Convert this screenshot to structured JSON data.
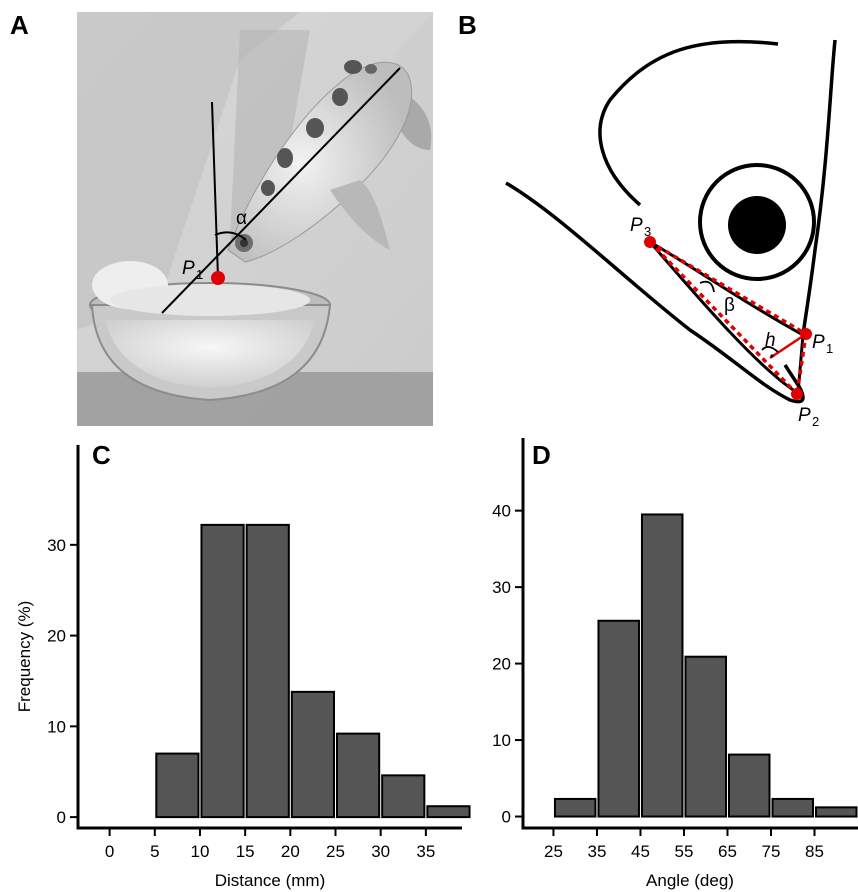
{
  "panels": {
    "a": {
      "letter": "A",
      "alpha": "α",
      "p1": "P",
      "p1_sub": "1"
    },
    "b": {
      "letter": "B",
      "beta": "β",
      "h": "h",
      "p1": "P",
      "p1_sub": "1",
      "p2": "P",
      "p2_sub": "2",
      "p3": "P",
      "p3_sub": "3"
    }
  },
  "chart_data": [
    {
      "panel": "C",
      "type": "bar",
      "xlabel": "Distance (mm)",
      "ylabel": "Frequency (%)",
      "x_ticks": [
        0,
        5,
        10,
        15,
        20,
        25,
        30,
        35
      ],
      "y_ticks": [
        0,
        10,
        20,
        30
      ],
      "xlim": [
        -3.5,
        39
      ],
      "ylim": [
        -1.2,
        41
      ],
      "bin_width": 5,
      "bin_starts": [
        5,
        10,
        15,
        20,
        25,
        30,
        35
      ],
      "values": [
        7,
        32.2,
        32.2,
        13.8,
        9.2,
        4.6,
        1.2
      ],
      "colors": {
        "bar": "#555555",
        "edge": "#000000"
      }
    },
    {
      "panel": "D",
      "type": "bar",
      "xlabel": "Angle (deg)",
      "ylabel": "",
      "x_ticks": [
        25,
        35,
        45,
        55,
        65,
        75,
        85
      ],
      "y_ticks": [
        0,
        10,
        20,
        30,
        40
      ],
      "xlim": [
        18,
        95
      ],
      "ylim": [
        -1.5,
        49.5
      ],
      "bin_width": 10,
      "bin_starts": [
        25,
        35,
        45,
        55,
        65,
        75,
        85
      ],
      "values": [
        2.3,
        25.6,
        39.5,
        20.9,
        8.1,
        2.3,
        1.2
      ],
      "colors": {
        "bar": "#555555",
        "edge": "#000000"
      }
    }
  ]
}
